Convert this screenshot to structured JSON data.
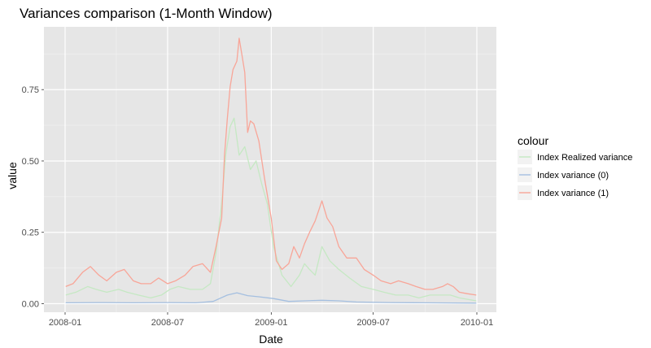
{
  "chart_data": {
    "type": "line",
    "title": "Variances comparison (1-Month Window)",
    "xlabel": "Date",
    "ylabel": "value",
    "x_axis": {
      "type": "date",
      "range": [
        "2008-01-01",
        "2010-01-01"
      ],
      "ticks": [
        "2008-01-01",
        "2008-07-01",
        "2009-01-01",
        "2009-07-01",
        "2010-01-01"
      ],
      "tick_labels": [
        "2008-01",
        "2008-07",
        "2009-01",
        "2009-07",
        "2010-01"
      ]
    },
    "y_axis": {
      "range": [
        -0.03,
        0.97
      ],
      "ticks": [
        0,
        0.25,
        0.5,
        0.75
      ],
      "tick_labels": [
        "0.00",
        "0.25",
        "0.50",
        "0.75"
      ]
    },
    "grid": true,
    "legend": {
      "title": "colour",
      "position": "right"
    },
    "series": [
      {
        "name": "Index Realized variance",
        "color": "#c5e8c3",
        "x": [
          "2008-01-02",
          "2008-01-20",
          "2008-02-10",
          "2008-02-25",
          "2008-03-15",
          "2008-04-05",
          "2008-04-20",
          "2008-05-10",
          "2008-06-01",
          "2008-06-20",
          "2008-07-05",
          "2008-07-20",
          "2008-08-10",
          "2008-09-01",
          "2008-09-15",
          "2008-09-25",
          "2008-10-05",
          "2008-10-12",
          "2008-10-20",
          "2008-10-27",
          "2008-11-05",
          "2008-11-15",
          "2008-11-25",
          "2008-12-05",
          "2008-12-15",
          "2008-12-25",
          "2009-01-05",
          "2009-01-20",
          "2009-02-05",
          "2009-02-20",
          "2009-03-01",
          "2009-03-10",
          "2009-03-20",
          "2009-04-01",
          "2009-04-15",
          "2009-05-01",
          "2009-05-20",
          "2009-06-10",
          "2009-07-01",
          "2009-07-20",
          "2009-08-10",
          "2009-09-01",
          "2009-09-20",
          "2009-10-10",
          "2009-11-01",
          "2009-11-15",
          "2009-12-01",
          "2009-12-31"
        ],
        "values": [
          0.03,
          0.04,
          0.06,
          0.05,
          0.04,
          0.05,
          0.04,
          0.03,
          0.02,
          0.03,
          0.05,
          0.06,
          0.05,
          0.05,
          0.07,
          0.18,
          0.35,
          0.52,
          0.62,
          0.65,
          0.52,
          0.55,
          0.47,
          0.5,
          0.42,
          0.35,
          0.2,
          0.1,
          0.06,
          0.1,
          0.14,
          0.12,
          0.1,
          0.2,
          0.15,
          0.12,
          0.09,
          0.06,
          0.05,
          0.04,
          0.03,
          0.03,
          0.02,
          0.03,
          0.03,
          0.03,
          0.02,
          0.01
        ]
      },
      {
        "name": "Index variance (0)",
        "color": "#a4bfe0",
        "x": [
          "2008-01-02",
          "2008-03-01",
          "2008-05-01",
          "2008-07-01",
          "2008-08-20",
          "2008-09-20",
          "2008-10-15",
          "2008-11-01",
          "2008-11-20",
          "2008-12-10",
          "2009-01-05",
          "2009-02-01",
          "2009-03-01",
          "2009-04-01",
          "2009-05-01",
          "2009-06-01",
          "2009-08-01",
          "2009-10-01",
          "2009-12-31"
        ],
        "values": [
          0.003,
          0.004,
          0.003,
          0.004,
          0.003,
          0.008,
          0.03,
          0.038,
          0.028,
          0.024,
          0.018,
          0.008,
          0.01,
          0.012,
          0.01,
          0.006,
          0.004,
          0.003,
          0.002
        ]
      },
      {
        "name": "Index variance (1)",
        "color": "#f8a598",
        "x": [
          "2008-01-02",
          "2008-01-15",
          "2008-02-01",
          "2008-02-15",
          "2008-03-01",
          "2008-03-15",
          "2008-04-01",
          "2008-04-15",
          "2008-05-01",
          "2008-05-15",
          "2008-06-01",
          "2008-06-15",
          "2008-07-01",
          "2008-07-15",
          "2008-08-01",
          "2008-08-15",
          "2008-09-01",
          "2008-09-15",
          "2008-09-25",
          "2008-10-05",
          "2008-10-10",
          "2008-10-15",
          "2008-10-20",
          "2008-10-25",
          "2008-11-01",
          "2008-11-05",
          "2008-11-10",
          "2008-11-15",
          "2008-11-20",
          "2008-11-25",
          "2008-12-01",
          "2008-12-10",
          "2008-12-20",
          "2009-01-01",
          "2009-01-10",
          "2009-01-20",
          "2009-02-01",
          "2009-02-10",
          "2009-02-20",
          "2009-03-01",
          "2009-03-10",
          "2009-03-20",
          "2009-04-01",
          "2009-04-10",
          "2009-04-20",
          "2009-05-01",
          "2009-05-15",
          "2009-06-01",
          "2009-06-15",
          "2009-07-01",
          "2009-07-15",
          "2009-08-01",
          "2009-08-15",
          "2009-09-01",
          "2009-09-15",
          "2009-10-01",
          "2009-10-15",
          "2009-11-01",
          "2009-11-10",
          "2009-11-20",
          "2009-12-01",
          "2009-12-15",
          "2009-12-31"
        ],
        "values": [
          0.06,
          0.07,
          0.11,
          0.13,
          0.1,
          0.08,
          0.11,
          0.12,
          0.08,
          0.07,
          0.07,
          0.09,
          0.07,
          0.08,
          0.1,
          0.13,
          0.14,
          0.11,
          0.2,
          0.3,
          0.52,
          0.65,
          0.76,
          0.82,
          0.85,
          0.93,
          0.87,
          0.81,
          0.6,
          0.64,
          0.63,
          0.57,
          0.44,
          0.3,
          0.15,
          0.12,
          0.14,
          0.2,
          0.16,
          0.21,
          0.25,
          0.29,
          0.36,
          0.3,
          0.27,
          0.2,
          0.16,
          0.16,
          0.12,
          0.1,
          0.08,
          0.07,
          0.08,
          0.07,
          0.06,
          0.05,
          0.05,
          0.06,
          0.07,
          0.06,
          0.04,
          0.035,
          0.03
        ]
      }
    ]
  }
}
